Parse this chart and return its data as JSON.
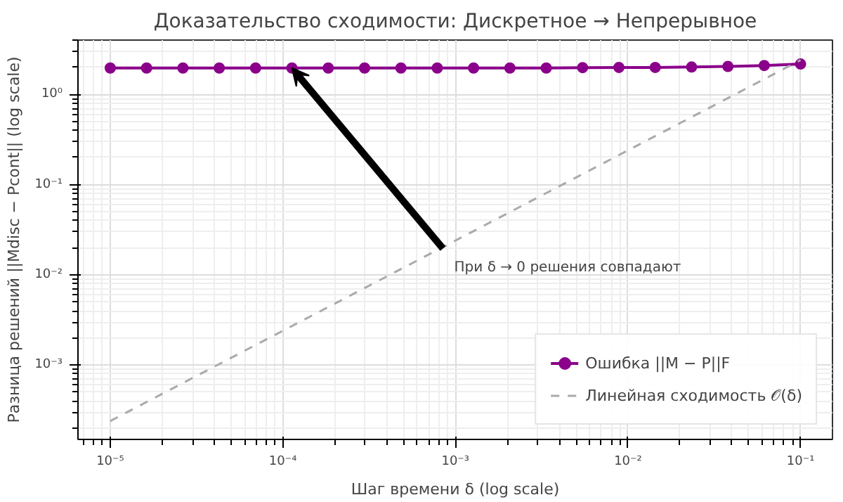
{
  "chart_data": {
    "type": "line",
    "title": "Доказательство сходимости: Дискретное → Непрерывное",
    "xlabel": "Шаг времени δ (log scale)",
    "ylabel": "Разница решений ||Mdisc − Pcont|| (log scale)",
    "x": [
      1e-05,
      1.624e-05,
      2.637e-05,
      4.281e-05,
      6.952e-05,
      0.0001129,
      0.0001833,
      0.0002976,
      0.0004833,
      0.0007848,
      0.001274,
      0.002069,
      0.00336,
      0.005456,
      0.008859,
      0.01438,
      0.02336,
      0.03793,
      0.06158,
      0.1
    ],
    "series": [
      {
        "name": "Ошибка ||M − P||F",
        "color": "#8b008b",
        "marker": "circle",
        "line_style": "solid",
        "values": [
          1.96,
          1.96,
          1.96,
          1.96,
          1.96,
          1.96,
          1.96,
          1.96,
          1.96,
          1.96,
          1.96,
          1.96,
          1.96,
          1.98,
          1.99,
          1.99,
          2.01,
          2.04,
          2.09,
          2.17
        ]
      },
      {
        "name": "Линейная сходимость 𝒪(δ)",
        "color": "#aaaaaa",
        "marker": "none",
        "line_style": "dashed",
        "x": [
          1e-05,
          0.1
        ],
        "values": [
          0.00024,
          2.4
        ]
      }
    ],
    "annotations": [
      {
        "text": "При δ → 0 решения совпадают",
        "x": 0.0001129,
        "y": 1.96
      }
    ],
    "log": "xy",
    "grid": true,
    "legend": "bottom right",
    "xlim": [
      6.5e-06,
      0.153
    ],
    "ylim": [
      0.00015,
      4.0
    ],
    "xticks": [
      {
        "value": 1e-05,
        "label": "10⁻⁵"
      },
      {
        "value": 0.0001,
        "label": "10⁻⁴"
      },
      {
        "value": 0.001,
        "label": "10⁻³"
      },
      {
        "value": 0.01,
        "label": "10⁻²"
      },
      {
        "value": 0.1,
        "label": "10⁻¹"
      }
    ],
    "yticks": [
      {
        "value": 0.001,
        "label": "10⁻³"
      },
      {
        "value": 0.01,
        "label": "10⁻²"
      },
      {
        "value": 0.1,
        "label": "10⁻¹"
      },
      {
        "value": 1,
        "label": "10⁰"
      }
    ]
  }
}
